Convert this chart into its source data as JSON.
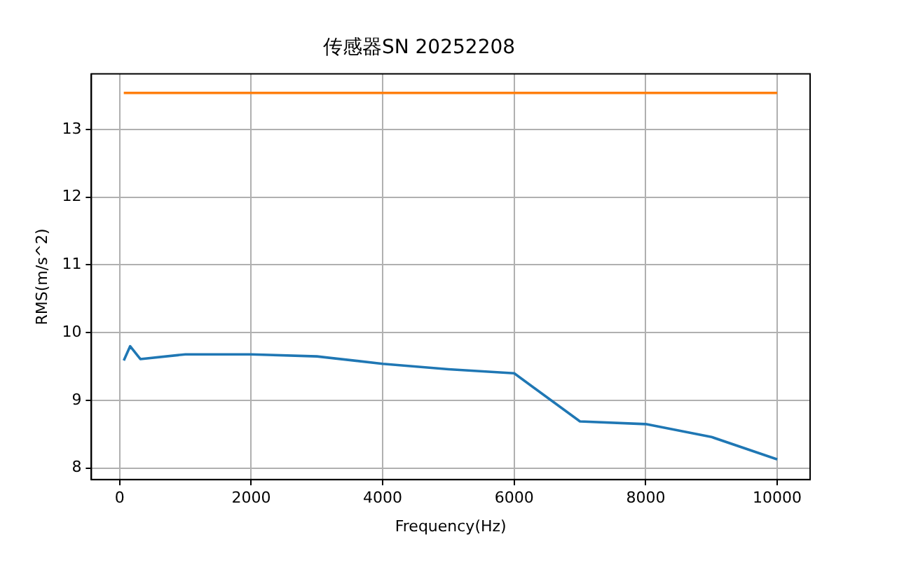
{
  "chart_data": {
    "type": "line",
    "title": "传感器SN 20252208",
    "xlabel": "Frequency(Hz)",
    "ylabel": "RMS(m/s^2)",
    "xlim": [
      -430,
      10500
    ],
    "xticks": [
      0,
      2000,
      4000,
      6000,
      8000,
      10000
    ],
    "ylim": [
      7.83,
      13.82
    ],
    "yticks": [
      8,
      9,
      10,
      11,
      12,
      13
    ],
    "grid": true,
    "legend": false,
    "marker": "none",
    "line_style": "solid",
    "series": [
      {
        "color": "#1f77b4",
        "x": [
          63,
          160,
          315,
          1000,
          2000,
          3000,
          4000,
          5000,
          6000,
          7000,
          8000,
          9000,
          10000
        ],
        "values": [
          9.59,
          9.8,
          9.61,
          9.68,
          9.68,
          9.65,
          9.54,
          9.46,
          9.4,
          8.69,
          8.65,
          8.46,
          8.13
        ]
      },
      {
        "color": "#ff7f0e",
        "x": [
          63,
          10000
        ],
        "values": [
          13.54,
          13.54
        ]
      }
    ]
  }
}
